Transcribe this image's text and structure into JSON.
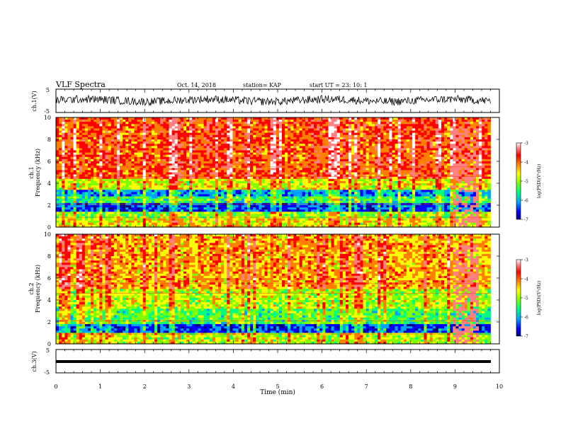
{
  "header": {
    "title": "VLF Spectra",
    "date": "Oct. 14, 2018",
    "station": "station= KAP",
    "start": "start  UT =   23: 10: 1"
  },
  "chart_data": [
    {
      "type": "line",
      "name": "ch1-waveform",
      "ylabel": "ch.1(V)",
      "ylim": [
        -5,
        5
      ],
      "yticks": [
        "5",
        "-5"
      ],
      "xlim": [
        0,
        10
      ],
      "mean": 0.2,
      "amplitude": 1.7
    },
    {
      "type": "heatmap",
      "name": "ch1-spectrogram",
      "ylabel": "ch.1\nFrequency (kHz)",
      "ylabel_lines": [
        "ch.1",
        "Frequency  (kHz)"
      ],
      "xlim": [
        0,
        10
      ],
      "ylim": [
        0,
        10
      ],
      "yticks": [
        0,
        2,
        4,
        6,
        8,
        10
      ],
      "colorbar": {
        "label": "log(PSD)(V²/Hz)",
        "range": [
          -7,
          -3
        ],
        "ticks": [
          "-3",
          "-4",
          "-5",
          "-6",
          "-7"
        ],
        "colors": [
          "#000080",
          "#0000ff",
          "#00a0ff",
          "#00ff80",
          "#80ff00",
          "#ffff00",
          "#ff8000",
          "#ff0000",
          "#ff8080",
          "#ffffff"
        ]
      },
      "bands_khz": [
        {
          "from": 0,
          "to": 0.8,
          "level": -4.8
        },
        {
          "from": 0.8,
          "to": 1.5,
          "level": -5.2
        },
        {
          "from": 1.5,
          "to": 2.2,
          "level": -6.3
        },
        {
          "from": 2.2,
          "to": 2.8,
          "level": -5.5
        },
        {
          "from": 2.8,
          "to": 3.5,
          "level": -6.0
        },
        {
          "from": 3.5,
          "to": 4.5,
          "level": -4.9
        },
        {
          "from": 4.5,
          "to": 10,
          "level": -4.2
        }
      ],
      "burst_min": [
        8.9,
        9.5
      ]
    },
    {
      "type": "heatmap",
      "name": "ch2-spectrogram",
      "ylabel": "ch.2\nFrequency (kHz)",
      "ylabel_lines": [
        "ch.2",
        "Frequency  (kHz)"
      ],
      "xlim": [
        0,
        10
      ],
      "ylim": [
        0,
        10
      ],
      "yticks": [
        0,
        2,
        4,
        6,
        8,
        10
      ],
      "colorbar": {
        "label": "log(PSD)(V²/Hz)",
        "range": [
          -7,
          -3
        ],
        "ticks": [
          "-3",
          "-4",
          "-5",
          "-6",
          "-7"
        ],
        "colors": [
          "#000080",
          "#0000ff",
          "#00a0ff",
          "#00ff80",
          "#80ff00",
          "#ffff00",
          "#ff8000",
          "#ff0000",
          "#ff8080",
          "#ffffff"
        ]
      },
      "bands_khz": [
        {
          "from": 0,
          "to": 1.0,
          "level": -5.0
        },
        {
          "from": 1.0,
          "to": 1.8,
          "level": -6.3
        },
        {
          "from": 1.8,
          "to": 3.2,
          "level": -5.4
        },
        {
          "from": 3.2,
          "to": 5.0,
          "level": -5.0
        },
        {
          "from": 5.0,
          "to": 10,
          "level": -4.5
        }
      ],
      "burst_min": [
        8.9,
        9.5
      ]
    },
    {
      "type": "line",
      "name": "ch3-waveform",
      "ylabel": "ch.3(V)",
      "ylim": [
        -5,
        5
      ],
      "yticks": [
        "5",
        "-5"
      ],
      "xlim": [
        0,
        10
      ],
      "mean": 0.0,
      "amplitude": 0.15
    }
  ],
  "xaxis": {
    "label": "Time  (min)",
    "ticks": [
      "0",
      "1",
      "2",
      "3",
      "4",
      "5",
      "6",
      "7",
      "8",
      "9",
      "10"
    ]
  }
}
